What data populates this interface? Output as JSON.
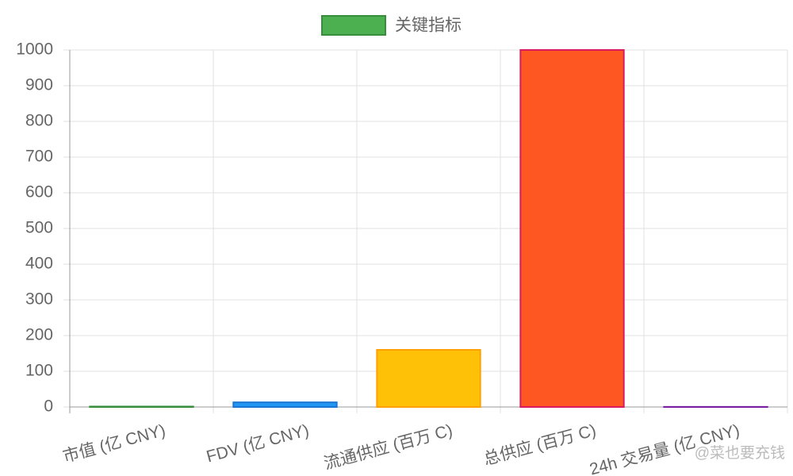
{
  "chart_data": {
    "type": "bar",
    "legend": "关键指标",
    "legend_color": "#4caf50",
    "legend_border": "#388e3c",
    "categories": [
      "市值 (亿 CNY)",
      "FDV (亿 CNY)",
      "流通供应 (百万 C)",
      "总供应 (百万 C)",
      "24h 交易量 (亿 CNY)"
    ],
    "values": [
      1.2,
      13,
      160,
      1000,
      0.3
    ],
    "colors": [
      "#4caf50",
      "#2196f3",
      "#ffc107",
      "#ff5722",
      "#9c27b0"
    ],
    "border_colors": [
      "#388e3c",
      "#1976d2",
      "#ffa000",
      "#d81b60",
      "#7b1fa2"
    ],
    "ylim": [
      0,
      1000
    ],
    "yticks": [
      0,
      100,
      200,
      300,
      400,
      500,
      600,
      700,
      800,
      900,
      1000
    ],
    "grid": true,
    "watermark": "@菜也要充钱"
  }
}
